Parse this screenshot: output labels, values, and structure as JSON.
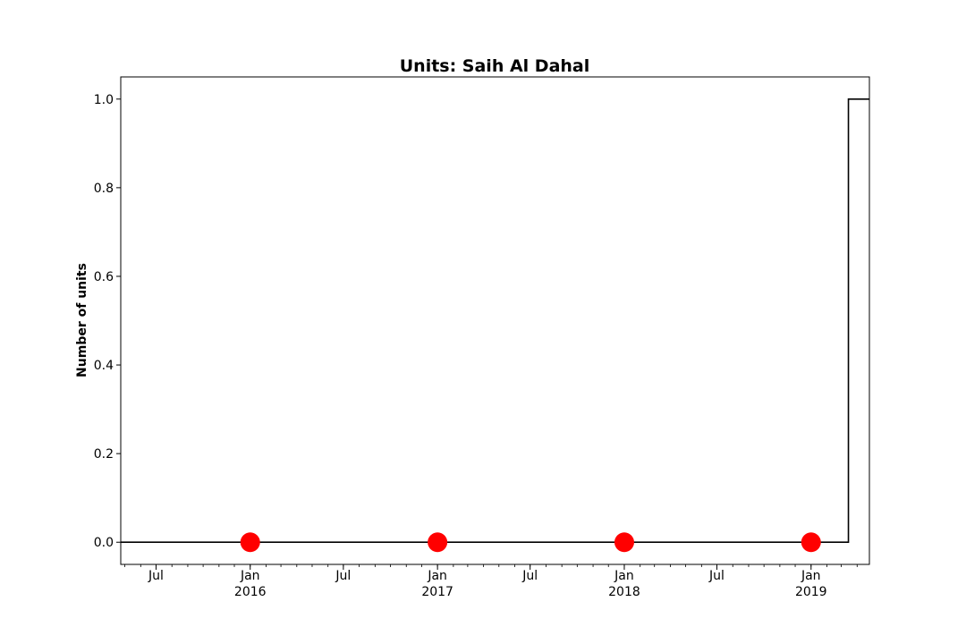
{
  "chart_data": {
    "type": "line",
    "title": "Units: Saih Al Dahal",
    "xlabel": "",
    "ylabel": "Number of units",
    "ylim": [
      -0.05,
      1.05
    ],
    "xlim": [
      "2015-04-23",
      "2019-04-25"
    ],
    "yticks": [
      {
        "value": 0.0,
        "label": "0.0"
      },
      {
        "value": 0.2,
        "label": "0.2"
      },
      {
        "value": 0.4,
        "label": "0.4"
      },
      {
        "value": 0.6,
        "label": "0.6"
      },
      {
        "value": 0.8,
        "label": "0.8"
      },
      {
        "value": 1.0,
        "label": "1.0"
      }
    ],
    "xticks": [
      {
        "date": "2015-07-01",
        "label": "Jul",
        "sublabel": ""
      },
      {
        "date": "2016-01-01",
        "label": "Jan",
        "sublabel": "2016"
      },
      {
        "date": "2016-07-01",
        "label": "Jul",
        "sublabel": ""
      },
      {
        "date": "2017-01-01",
        "label": "Jan",
        "sublabel": "2017"
      },
      {
        "date": "2017-07-01",
        "label": "Jul",
        "sublabel": ""
      },
      {
        "date": "2018-01-01",
        "label": "Jan",
        "sublabel": "2018"
      },
      {
        "date": "2018-07-01",
        "label": "Jul",
        "sublabel": ""
      },
      {
        "date": "2019-01-01",
        "label": "Jan",
        "sublabel": "2019"
      }
    ],
    "series": [
      {
        "style": "step",
        "color": "#000000",
        "points": [
          {
            "x": "2015-04-23",
            "y": 0
          },
          {
            "x": "2019-03-15",
            "y": 0
          },
          {
            "x": "2019-03-15",
            "y": 1
          },
          {
            "x": "2019-04-25",
            "y": 1
          }
        ]
      }
    ],
    "markers": {
      "color": "#ff0000",
      "points": [
        {
          "x": "2016-01-01",
          "y": 0
        },
        {
          "x": "2017-01-01",
          "y": 0
        },
        {
          "x": "2018-01-01",
          "y": 0
        },
        {
          "x": "2019-01-01",
          "y": 0
        }
      ]
    },
    "grid": false,
    "legend": "none"
  }
}
